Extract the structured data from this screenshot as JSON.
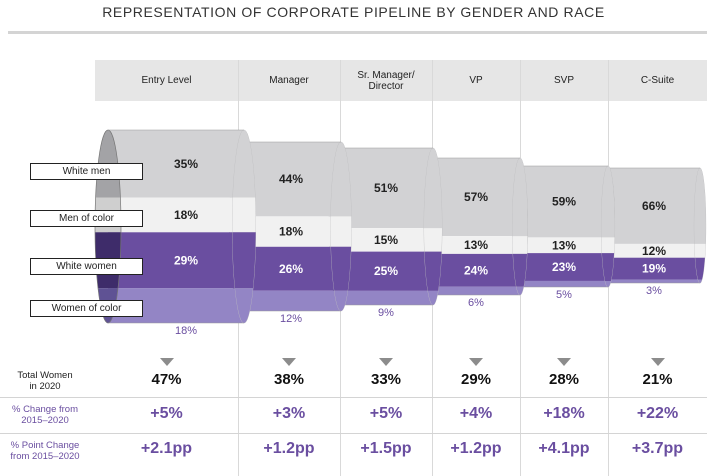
{
  "title": "REPRESENTATION OF CORPORATE PIPELINE BY GENDER AND RACE",
  "legend": [
    "White men",
    "Men of color",
    "White women",
    "Women of color"
  ],
  "metrics": {
    "total_women_label": "Total Women\nin 2020",
    "pct_change_label": "% Change from\n2015–2020",
    "pp_change_label": "% Point Change\nfrom 2015–2020"
  },
  "colors": {
    "white_men": "#d2d2d4",
    "men_of_color": "#f1f1f1",
    "white_women": "#6a4ea0",
    "women_of_color": "#9385c5",
    "purple_text": "#6a4ea0"
  },
  "chart_data": {
    "type": "bar",
    "title": "REPRESENTATION OF CORPORATE PIPELINE BY GENDER AND RACE",
    "categories": [
      "Entry Level",
      "Manager",
      "Sr. Manager/\nDirector",
      "VP",
      "SVP",
      "C-Suite"
    ],
    "series": [
      {
        "name": "White men",
        "values": [
          35,
          44,
          51,
          57,
          59,
          66
        ]
      },
      {
        "name": "Men of color",
        "values": [
          18,
          18,
          15,
          13,
          13,
          12
        ]
      },
      {
        "name": "White women",
        "values": [
          29,
          26,
          25,
          24,
          23,
          19
        ]
      },
      {
        "name": "Women of color",
        "values": [
          18,
          12,
          9,
          6,
          5,
          3
        ]
      }
    ],
    "total_women_2020": [
      "47%",
      "38%",
      "33%",
      "29%",
      "28%",
      "21%"
    ],
    "pct_change_2015_2020": [
      "+5%",
      "+3%",
      "+5%",
      "+4%",
      "+18%",
      "+22%"
    ],
    "pp_change_2015_2020": [
      "+2.1pp",
      "+1.2pp",
      "+1.5pp",
      "+1.2pp",
      "+4.1pp",
      "+3.7pp"
    ]
  }
}
